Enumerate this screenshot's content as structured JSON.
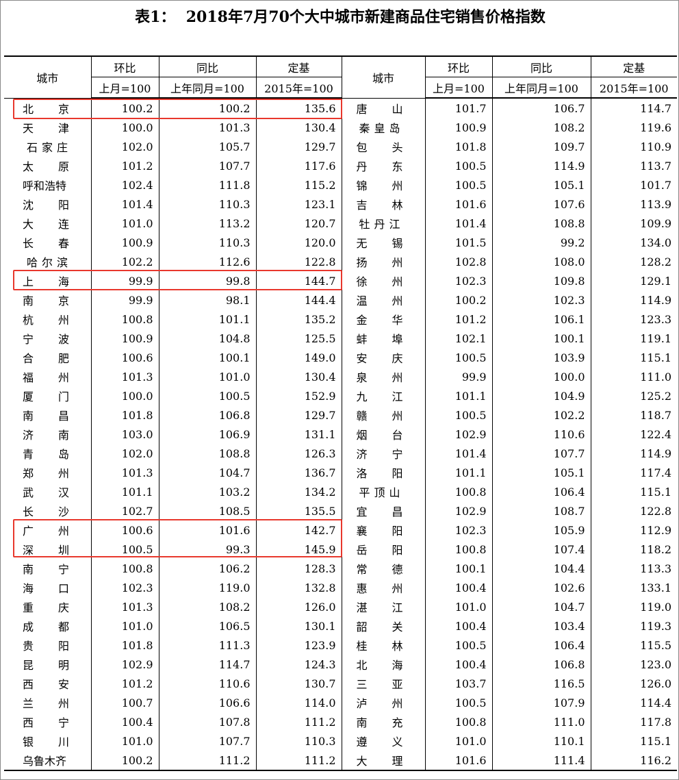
{
  "title": "表1：  2018年7月70个大中城市新建商品住宅销售价格指数",
  "table": {
    "header": {
      "city": "城市",
      "columns": [
        {
          "name": "环比",
          "base": "上月=100"
        },
        {
          "name": "同比",
          "base": "上年同月=100"
        },
        {
          "name": "定基",
          "base": "2015年=100"
        }
      ]
    },
    "rows": [
      [
        "北京",
        "100.2",
        "100.2",
        "135.6",
        "唐山",
        "101.7",
        "106.7",
        "114.7"
      ],
      [
        "天津",
        "100.0",
        "101.3",
        "130.4",
        "秦皇岛",
        "100.9",
        "108.2",
        "119.6"
      ],
      [
        "石家庄",
        "102.0",
        "105.7",
        "129.7",
        "包头",
        "101.8",
        "109.7",
        "110.9"
      ],
      [
        "太原",
        "101.2",
        "107.7",
        "117.6",
        "丹东",
        "100.5",
        "114.9",
        "113.7"
      ],
      [
        "呼和浩特",
        "102.4",
        "111.8",
        "115.2",
        "锦州",
        "100.5",
        "105.1",
        "101.7"
      ],
      [
        "沈阳",
        "101.4",
        "110.3",
        "123.1",
        "吉林",
        "101.6",
        "107.6",
        "113.9"
      ],
      [
        "大连",
        "101.0",
        "113.2",
        "120.7",
        "牡丹江",
        "101.4",
        "108.8",
        "109.9"
      ],
      [
        "长春",
        "100.9",
        "110.3",
        "120.0",
        "无锡",
        "101.5",
        "99.2",
        "134.0"
      ],
      [
        "哈尔滨",
        "102.2",
        "112.6",
        "122.8",
        "扬州",
        "102.8",
        "108.0",
        "128.2"
      ],
      [
        "上海",
        "99.9",
        "99.8",
        "144.7",
        "徐州",
        "102.3",
        "109.8",
        "129.1"
      ],
      [
        "南京",
        "99.9",
        "98.1",
        "144.4",
        "温州",
        "100.2",
        "102.3",
        "114.9"
      ],
      [
        "杭州",
        "100.8",
        "101.1",
        "135.2",
        "金华",
        "101.2",
        "106.1",
        "123.3"
      ],
      [
        "宁波",
        "100.9",
        "104.8",
        "125.5",
        "蚌埠",
        "102.1",
        "100.1",
        "119.1"
      ],
      [
        "合肥",
        "100.6",
        "100.1",
        "149.0",
        "安庆",
        "100.5",
        "103.9",
        "115.1"
      ],
      [
        "福州",
        "101.3",
        "101.0",
        "130.4",
        "泉州",
        "99.9",
        "100.0",
        "111.0"
      ],
      [
        "厦门",
        "100.0",
        "100.5",
        "152.9",
        "九江",
        "101.1",
        "104.9",
        "125.2"
      ],
      [
        "南昌",
        "101.8",
        "106.8",
        "129.7",
        "赣州",
        "100.5",
        "102.2",
        "118.7"
      ],
      [
        "济南",
        "103.0",
        "106.9",
        "131.1",
        "烟台",
        "102.9",
        "110.6",
        "122.4"
      ],
      [
        "青岛",
        "102.0",
        "108.8",
        "126.3",
        "济宁",
        "101.4",
        "107.7",
        "114.9"
      ],
      [
        "郑州",
        "101.3",
        "104.7",
        "136.7",
        "洛阳",
        "101.1",
        "105.1",
        "117.4"
      ],
      [
        "武汉",
        "101.1",
        "103.2",
        "134.2",
        "平顶山",
        "100.8",
        "106.4",
        "115.1"
      ],
      [
        "长沙",
        "102.7",
        "108.5",
        "135.5",
        "宜昌",
        "102.9",
        "108.7",
        "122.8"
      ],
      [
        "广州",
        "100.6",
        "101.6",
        "142.7",
        "襄阳",
        "102.3",
        "105.9",
        "112.9"
      ],
      [
        "深圳",
        "100.5",
        "99.3",
        "145.9",
        "岳阳",
        "100.8",
        "107.4",
        "118.2"
      ],
      [
        "南宁",
        "100.8",
        "106.2",
        "128.3",
        "常德",
        "100.1",
        "104.4",
        "113.3"
      ],
      [
        "海口",
        "102.3",
        "119.0",
        "132.8",
        "惠州",
        "100.4",
        "102.6",
        "133.1"
      ],
      [
        "重庆",
        "101.3",
        "108.2",
        "126.0",
        "湛江",
        "101.0",
        "104.7",
        "119.0"
      ],
      [
        "成都",
        "101.0",
        "106.5",
        "130.1",
        "韶关",
        "100.4",
        "103.4",
        "119.3"
      ],
      [
        "贵阳",
        "101.8",
        "111.3",
        "123.9",
        "桂林",
        "100.5",
        "106.4",
        "115.5"
      ],
      [
        "昆明",
        "102.9",
        "114.7",
        "124.3",
        "北海",
        "100.4",
        "106.8",
        "123.0"
      ],
      [
        "西安",
        "101.2",
        "110.6",
        "130.7",
        "三亚",
        "103.7",
        "116.5",
        "126.0"
      ],
      [
        "兰州",
        "100.7",
        "106.6",
        "114.0",
        "泸州",
        "100.5",
        "107.9",
        "114.4"
      ],
      [
        "西宁",
        "100.4",
        "107.8",
        "111.2",
        "南充",
        "100.8",
        "111.0",
        "117.8"
      ],
      [
        "银川",
        "101.0",
        "107.7",
        "110.3",
        "遵义",
        "101.0",
        "110.1",
        "115.1"
      ],
      [
        "乌鲁木齐",
        "100.2",
        "111.2",
        "111.2",
        "大理",
        "101.6",
        "111.4",
        "116.2"
      ]
    ]
  }
}
